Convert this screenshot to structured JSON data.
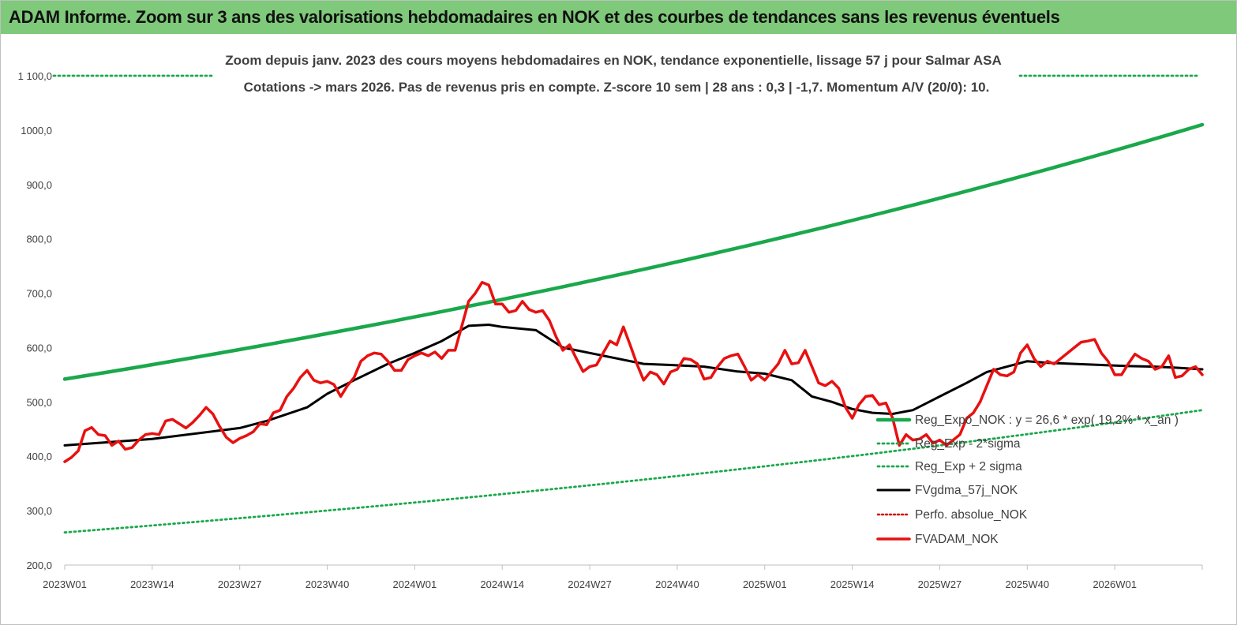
{
  "header": {
    "title": "ADAM Informe. Zoom sur 3 ans des valorisations hebdomadaires en NOK et des courbes de tendances sans les revenus éventuels"
  },
  "colors": {
    "banner": "#7ec97a",
    "trend": "#1aa84b",
    "sigma": "#1aa84b",
    "smooth": "#000000",
    "perf": "#d00000",
    "price": "#e81010"
  },
  "chart_data": {
    "type": "line",
    "title": "Zoom depuis janv. 2023 des cours moyens hebdomadaires en NOK, tendance exponentielle, lissage 57 j pour Salmar ASA",
    "subtitle": "Cotations -> mars 2026. Pas de revenus pris en compte. Z-score 10 sem | 28 ans : 0,3 | -1,7. Momentum A/V (20/0): 10.",
    "x_tick_labels": [
      "2023W01",
      "2023W14",
      "2023W27",
      "2023W40",
      "2024W01",
      "2024W14",
      "2024W27",
      "2024W40",
      "2025W01",
      "2025W14",
      "2025W27",
      "2025W40",
      "2026W01"
    ],
    "y_tick_labels": [
      "200,0",
      "300,0",
      "400,0",
      "500,0",
      "600,0",
      "700,0",
      "800,0",
      "900,0",
      "1000,0",
      "1 100,0"
    ],
    "ylim": [
      200,
      1100
    ],
    "week_range": [
      0,
      169
    ],
    "grid": false,
    "legend_position": "right",
    "series": [
      {
        "name": "Reg_Expo_NOK : y = 26,6 * exp( 19,2% * x_an )",
        "style": "solid",
        "color": "#1aa84b",
        "x": [
          0,
          169
        ],
        "y": [
          542,
          1010
        ],
        "curve": "exponential"
      },
      {
        "name": "Reg_Exp - 2*sigma",
        "style": "dotted",
        "color": "#1aa84b",
        "x": [
          0,
          169
        ],
        "y": [
          260,
          485
        ],
        "curve": "exponential"
      },
      {
        "name": "Reg_Exp + 2 sigma",
        "style": "dotted",
        "color": "#1aa84b",
        "x": [
          0,
          169
        ],
        "y": [
          1100,
          1100
        ],
        "curve": "linear"
      },
      {
        "name": "FVgdma_57j_NOK",
        "style": "solid",
        "color": "#000000",
        "x": [
          0,
          13,
          26,
          30,
          36,
          39,
          43,
          48,
          52,
          56,
          60,
          63,
          65,
          70,
          74,
          78,
          82,
          86,
          90,
          95,
          100,
          104,
          108,
          111,
          114,
          117,
          120,
          123,
          126,
          130,
          134,
          137,
          140,
          143,
          146,
          150,
          154,
          158,
          162,
          165,
          169
        ],
        "y": [
          420,
          432,
          452,
          465,
          490,
          515,
          540,
          570,
          590,
          612,
          640,
          642,
          638,
          632,
          600,
          590,
          580,
          570,
          568,
          565,
          556,
          552,
          540,
          510,
          500,
          487,
          480,
          478,
          485,
          510,
          535,
          555,
          565,
          575,
          572,
          570,
          568,
          566,
          565,
          563,
          560
        ]
      },
      {
        "name": "Perfo. absolue_NOK",
        "style": "dotted",
        "color": "#d00000",
        "x": [],
        "y": []
      },
      {
        "name": "FVADAM_NOK",
        "style": "solid",
        "color": "#e81010",
        "x": [
          0,
          1,
          2,
          3,
          4,
          5,
          6,
          7,
          8,
          9,
          10,
          11,
          12,
          13,
          14,
          15,
          16,
          17,
          18,
          19,
          20,
          21,
          22,
          23,
          24,
          25,
          26,
          27,
          28,
          29,
          30,
          31,
          32,
          33,
          34,
          35,
          36,
          37,
          38,
          39,
          40,
          41,
          42,
          43,
          44,
          45,
          46,
          47,
          48,
          49,
          50,
          51,
          52,
          53,
          54,
          55,
          56,
          57,
          58,
          59,
          60,
          61,
          62,
          63,
          64,
          65,
          66,
          67,
          68,
          69,
          70,
          71,
          72,
          73,
          74,
          75,
          76,
          77,
          78,
          79,
          80,
          81,
          82,
          83,
          84,
          85,
          86,
          87,
          88,
          89,
          90,
          91,
          92,
          93,
          94,
          95,
          96,
          97,
          98,
          99,
          100,
          101,
          102,
          103,
          104,
          105,
          106,
          107,
          108,
          109,
          110,
          111,
          112,
          113,
          114,
          115,
          116,
          117,
          118,
          119,
          120,
          121,
          122,
          123,
          124,
          125,
          126,
          127,
          128,
          129,
          130,
          131,
          132,
          133,
          134,
          135,
          136,
          137,
          138,
          139,
          140,
          141,
          142,
          143,
          144,
          145,
          146,
          147,
          148,
          149,
          150,
          151,
          152,
          153,
          154,
          155,
          156,
          157,
          158,
          159,
          160,
          161,
          162,
          163,
          164,
          165,
          166,
          167,
          168,
          169
        ],
        "y": [
          390,
          398,
          410,
          447,
          453,
          440,
          438,
          420,
          428,
          413,
          416,
          430,
          440,
          442,
          440,
          465,
          468,
          460,
          452,
          462,
          475,
          490,
          478,
          455,
          435,
          425,
          433,
          438,
          445,
          460,
          458,
          480,
          485,
          510,
          525,
          545,
          558,
          540,
          535,
          538,
          532,
          510,
          530,
          545,
          575,
          585,
          590,
          588,
          575,
          558,
          558,
          578,
          585,
          590,
          585,
          592,
          580,
          595,
          595,
          640,
          685,
          700,
          720,
          715,
          680,
          680,
          665,
          668,
          685,
          670,
          665,
          668,
          650,
          620,
          595,
          605,
          580,
          556,
          565,
          568,
          590,
          612,
          605,
          638,
          605,
          570,
          540,
          555,
          550,
          533,
          555,
          560,
          580,
          578,
          570,
          542,
          545,
          565,
          580,
          585,
          588,
          565,
          540,
          550,
          540,
          555,
          570,
          595,
          570,
          572,
          595,
          565,
          535,
          530,
          538,
          525,
          490,
          470,
          495,
          510,
          512,
          495,
          498,
          470,
          420,
          440,
          430,
          432,
          440,
          424,
          430,
          420,
          430,
          440,
          470,
          480,
          500,
          530,
          560,
          550,
          548,
          555,
          590,
          605,
          580,
          565,
          575,
          570,
          580,
          590,
          600,
          610,
          612,
          615,
          590,
          575,
          550,
          550,
          570,
          588,
          580,
          575,
          560,
          565,
          585,
          545,
          548,
          560,
          565,
          550
        ]
      }
    ]
  }
}
